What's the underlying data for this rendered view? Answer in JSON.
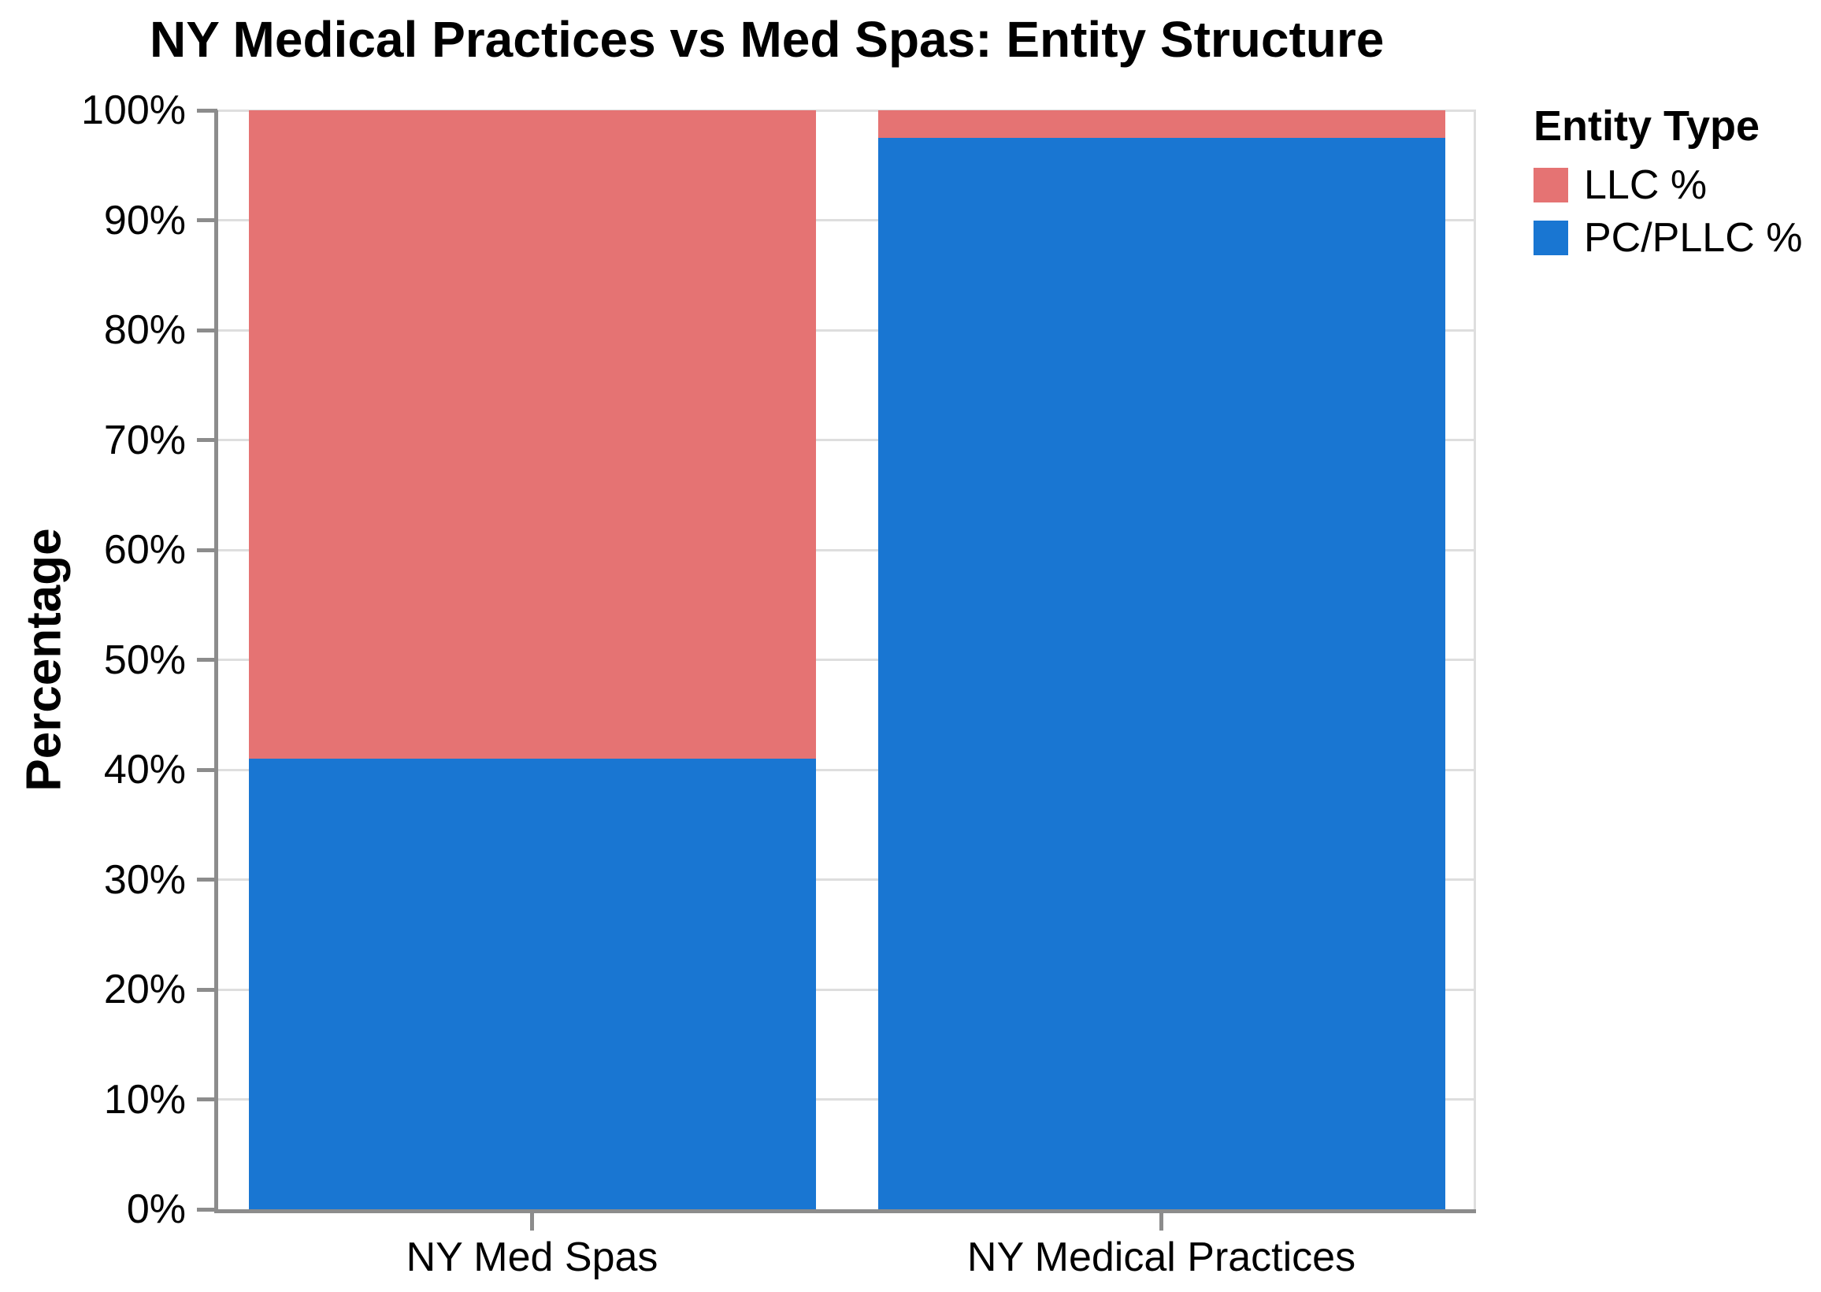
{
  "title": "NY Medical Practices vs Med Spas: Entity Structure",
  "chart_data": {
    "type": "bar",
    "stacked": true,
    "categories": [
      "NY Med Spas",
      "NY Medical Practices"
    ],
    "series": [
      {
        "name": "PC/PLLC %",
        "color": "#1976D2",
        "values": [
          41,
          97.5
        ]
      },
      {
        "name": "LLC %",
        "color": "#E57373",
        "values": [
          59,
          2.5
        ]
      }
    ],
    "title": "NY Medical Practices vs Med Spas: Entity Structure",
    "xlabel": "",
    "ylabel": "Percentage",
    "ylim": [
      0,
      100
    ],
    "ytick_step": 10,
    "ytick_suffix": "%",
    "grid": true,
    "legend_title": "Entity Type",
    "legend_position": "right",
    "legend_order": [
      "LLC %",
      "PC/PLLC %"
    ]
  },
  "colors": {
    "background": "#FFFFFF",
    "grid": "#DEDEDE",
    "axis": "#8C8C8C",
    "text": "#000000",
    "pc_pllc": "#1976D2",
    "llc": "#E57373"
  }
}
